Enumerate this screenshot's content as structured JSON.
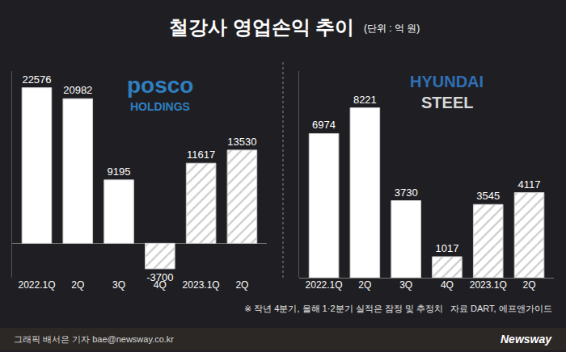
{
  "header": {
    "title": "철강사 영업손익 추이",
    "unit": "(단위 : 억 원)"
  },
  "chart_data": [
    {
      "type": "bar",
      "title": "posco HOLDINGS",
      "categories": [
        "2022.1Q",
        "2Q",
        "3Q",
        "4Q",
        "2023.1Q",
        "2Q"
      ],
      "series": [
        {
          "color": "#ffffff",
          "marker": "solid",
          "values": [
            22576,
            20982,
            9195,
            null,
            null,
            null
          ]
        },
        {
          "color": "#ffffff",
          "marker": "hatched",
          "values": [
            null,
            null,
            null,
            -3700,
            11617,
            13530
          ]
        }
      ],
      "ylim": [
        -5000,
        25000
      ],
      "data_labels": true,
      "tick_labels": "x",
      "grid": false
    },
    {
      "type": "bar",
      "title": "HYUNDAI STEEL",
      "categories": [
        "2022.1Q",
        "2Q",
        "3Q",
        "4Q",
        "2023.1Q",
        "2Q"
      ],
      "series": [
        {
          "color": "#ffffff",
          "marker": "solid",
          "values": [
            6974,
            8221,
            3730,
            null,
            null,
            null
          ]
        },
        {
          "color": "#ffffff",
          "marker": "hatched",
          "values": [
            null,
            null,
            null,
            1017,
            3545,
            4117
          ]
        }
      ],
      "ylim": [
        0,
        10000
      ],
      "data_labels": true,
      "tick_labels": "x",
      "grid": false
    }
  ],
  "footer": {
    "note": "※ 작년 4분기, 올해 1·2분기 실적은 잠정 및 추정치",
    "source": "자료 DART, 에프앤가이드",
    "credit": "그래픽 배서은 기자 bae@newsway.co.kr",
    "brand": "Newsway"
  }
}
